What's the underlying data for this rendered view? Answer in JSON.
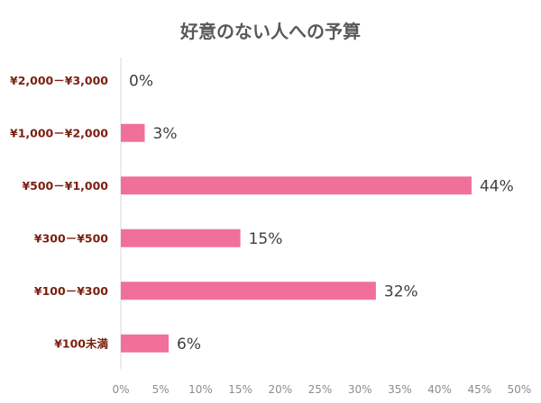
{
  "chart_data": {
    "type": "bar",
    "orientation": "horizontal",
    "title": "好意のない人への予算",
    "categories": [
      "¥2,000－¥3,000",
      "¥1,000－¥2,000",
      "¥500－¥1,000",
      "¥300－¥500",
      "¥100－¥300",
      "¥100未満"
    ],
    "values": [
      0,
      3,
      44,
      15,
      32,
      6
    ],
    "data_labels": [
      "0%",
      "3%",
      "44%",
      "15%",
      "32%",
      "6%"
    ],
    "xlim": [
      0,
      50
    ],
    "x_ticks": [
      "0%",
      "5%",
      "10%",
      "15%",
      "20%",
      "25%",
      "30%",
      "35%",
      "40%",
      "45%",
      "50%"
    ],
    "grid": false,
    "legend": "none",
    "colors": {
      "bar": "#f0709a",
      "category_label": "#7a1f0e",
      "title": "#595959",
      "axis": "#d9d9d9"
    }
  }
}
